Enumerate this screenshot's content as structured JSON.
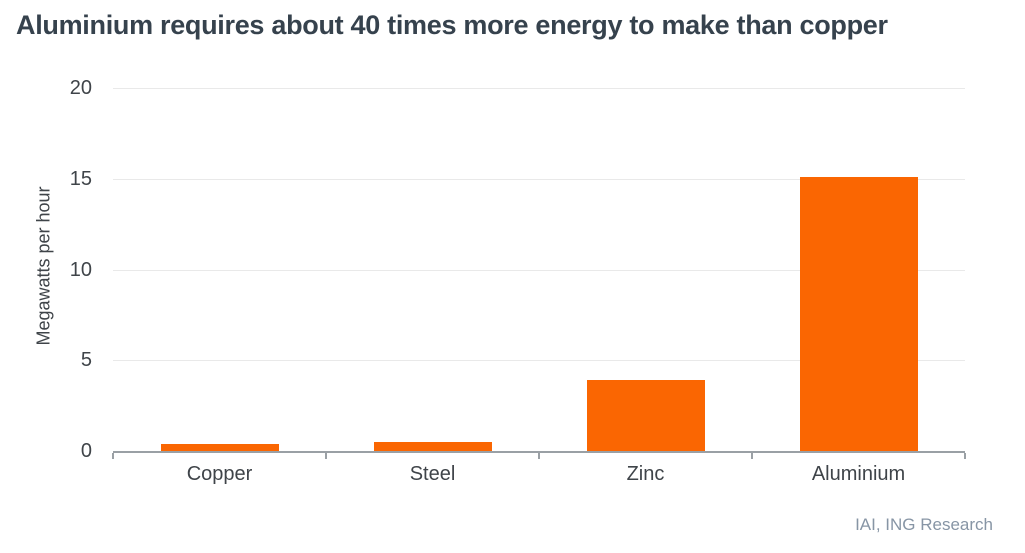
{
  "chart_data": {
    "type": "bar",
    "title": "Aluminium requires about 40 times more energy to make than copper",
    "ylabel": "Megawatts per hour",
    "xlabel": "",
    "categories": [
      "Copper",
      "Steel",
      "Zinc",
      "Aluminium"
    ],
    "values": [
      0.4,
      0.5,
      3.9,
      15.1
    ],
    "ylim": [
      0,
      20
    ],
    "yticks": [
      0,
      5,
      10,
      15,
      20
    ],
    "grid": "horizontal",
    "legend": "none",
    "bar_color": "#fa6602",
    "source": "IAI, ING Research"
  },
  "colors": {
    "title": "#36424d",
    "axis_labels": "#3f4449",
    "gridline": "#e9e9e9",
    "axis_line": "#9aa0a5",
    "source": "#8795a5",
    "background": "#ffffff"
  }
}
